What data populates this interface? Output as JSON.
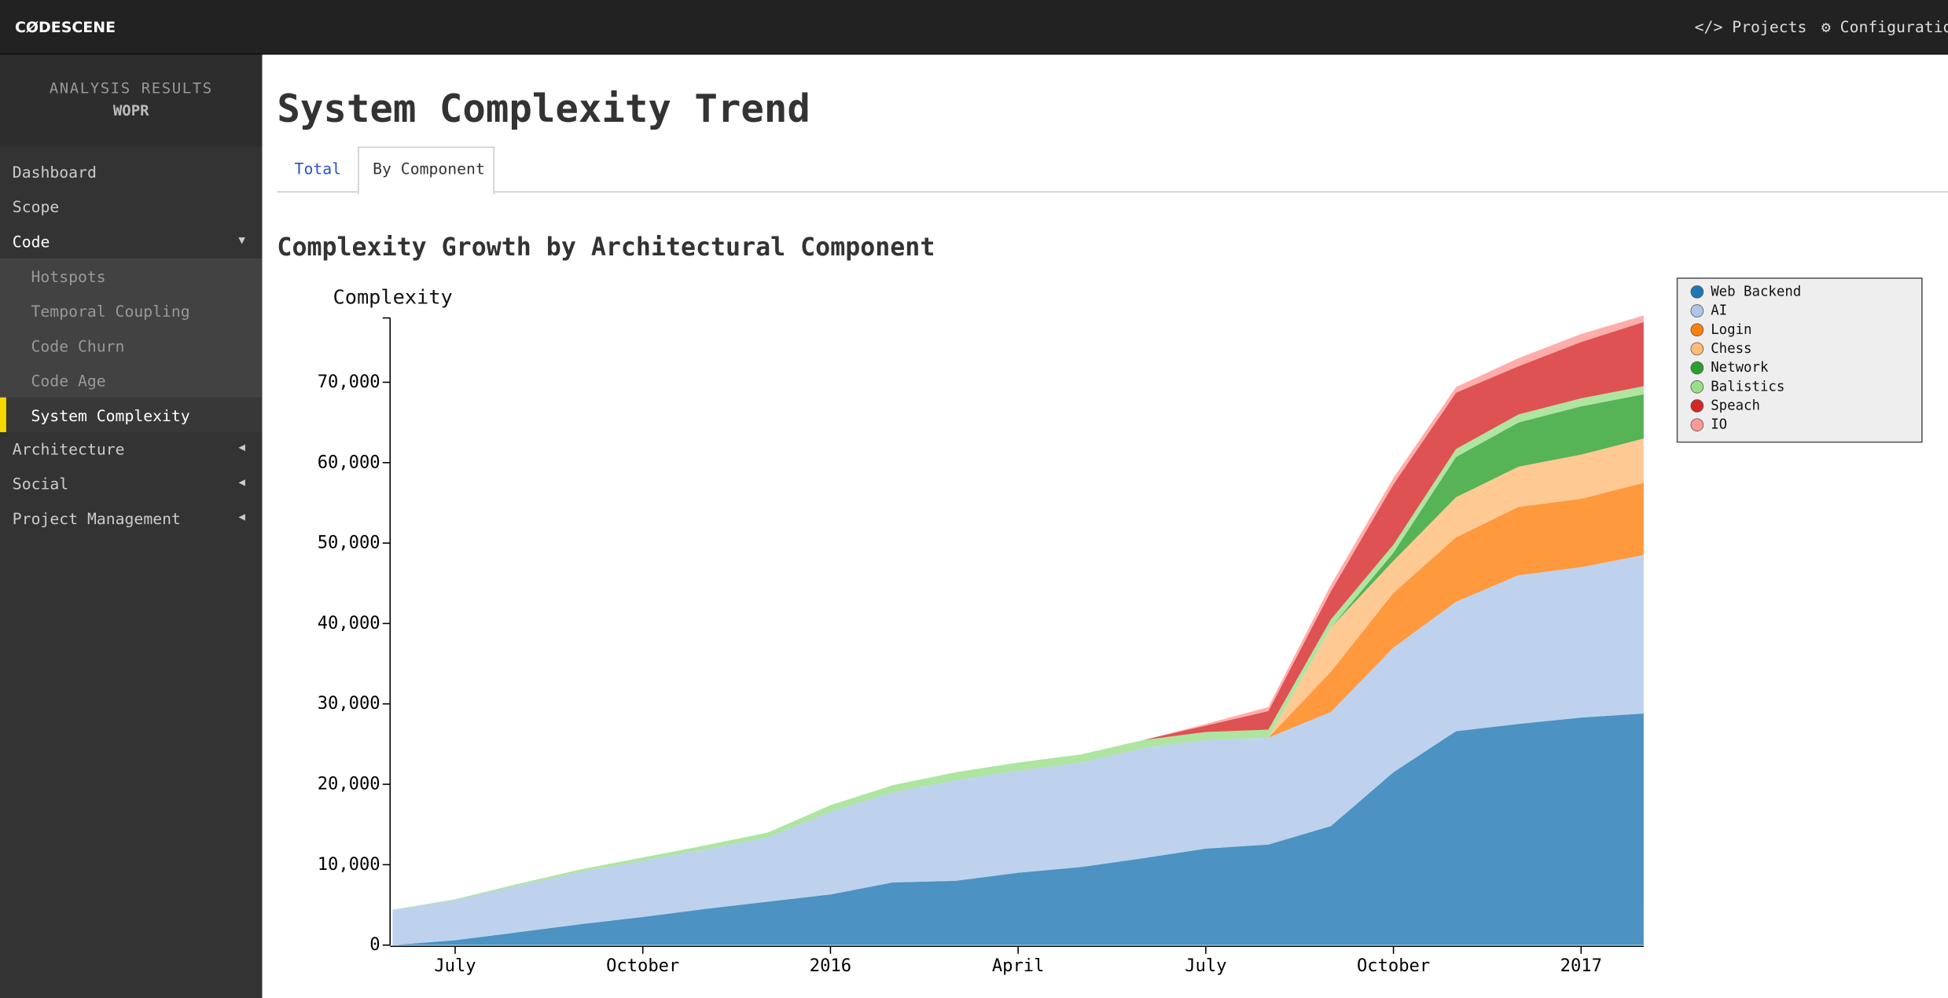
{
  "header": {
    "brand": "CØDESCENE",
    "nav": [
      "Projects",
      "Configuration"
    ]
  },
  "sidebar": {
    "heading": "ANALYSIS RESULTS",
    "project": "WOPR",
    "menu": [
      "Dashboard",
      "Scope",
      "Code",
      "Architecture",
      "Social",
      "Project Management"
    ],
    "submenu": [
      "Hotspots",
      "Temporal Coupling",
      "Code Churn",
      "Code Age",
      "System Complexity"
    ]
  },
  "page": {
    "title": "System Complexity Trend",
    "tabs": [
      "Total",
      "By Component"
    ]
  },
  "chart_data": {
    "type": "stacked-area",
    "title": "Complexity Growth by Architectural Component",
    "y_label": "Complexity",
    "x": [
      "2015-06",
      "2015-07",
      "2015-08",
      "2015-09",
      "2015-10",
      "2015-11",
      "2015-12",
      "2016-01",
      "2016-02",
      "2016-03",
      "2016-04",
      "2016-05",
      "2016-06",
      "2016-07",
      "2016-08",
      "2016-09",
      "2016-10",
      "2016-11",
      "2016-12",
      "2017-01",
      "2017-02"
    ],
    "xlim": [
      "2015-06",
      "2017-02"
    ],
    "xticks": [
      {
        "value": "2015-07",
        "label": "July"
      },
      {
        "value": "2015-10",
        "label": "October"
      },
      {
        "value": "2016-01",
        "label": "2016"
      },
      {
        "value": "2016-04",
        "label": "April"
      },
      {
        "value": "2016-07",
        "label": "July"
      },
      {
        "value": "2016-10",
        "label": "October"
      },
      {
        "value": "2017-01",
        "label": "2017"
      }
    ],
    "ylim": [
      0,
      78000
    ],
    "yticks": [
      0,
      {
        "value": 10000,
        "label": "10,000"
      },
      {
        "value": 20000,
        "label": "20,000"
      },
      {
        "value": 30000,
        "label": "30,000"
      },
      {
        "value": 40000,
        "label": "40,000"
      },
      {
        "value": 50000,
        "label": "50,000"
      },
      {
        "value": 60000,
        "label": "60,000"
      },
      {
        "value": 70000,
        "label": "70,000"
      }
    ],
    "legend": "top-right",
    "series": [
      {
        "name": "Web Backend",
        "color": "#1f77b4",
        "values": [
          0,
          600,
          1600,
          2600,
          3500,
          4500,
          5400,
          6300,
          7800,
          8000,
          9000,
          9700,
          10800,
          12000,
          12500,
          14800,
          21500,
          26600,
          27500,
          28300,
          28800
        ]
      },
      {
        "name": "AI",
        "color": "#aec7e8",
        "values": [
          4400,
          5000,
          5800,
          6500,
          7000,
          7400,
          8000,
          10300,
          11200,
          12500,
          12700,
          13000,
          13700,
          13500,
          13300,
          14200,
          15500,
          16100,
          18500,
          18700,
          19700
        ]
      },
      {
        "name": "Login",
        "color": "#ff7f0e",
        "values": [
          0,
          0,
          0,
          0,
          0,
          0,
          0,
          0,
          0,
          0,
          0,
          0,
          0,
          0,
          0,
          5000,
          6800,
          8000,
          8500,
          8500,
          9000
        ]
      },
      {
        "name": "Chess",
        "color": "#ffbb78",
        "values": [
          0,
          0,
          0,
          0,
          0,
          0,
          0,
          0,
          0,
          0,
          0,
          0,
          0,
          0,
          0,
          5500,
          4000,
          5000,
          5000,
          5500,
          5500
        ]
      },
      {
        "name": "Network",
        "color": "#2ca02c",
        "values": [
          0,
          0,
          0,
          0,
          0,
          0,
          0,
          0,
          0,
          0,
          0,
          0,
          0,
          0,
          0,
          0,
          1000,
          5000,
          5500,
          6000,
          5500
        ]
      },
      {
        "name": "Balistics",
        "color": "#98df8a",
        "values": [
          0,
          100,
          200,
          300,
          400,
          500,
          600,
          800,
          900,
          1000,
          1000,
          1000,
          1000,
          1000,
          1000,
          1000,
          1000,
          1000,
          1000,
          1000,
          1000
        ]
      },
      {
        "name": "Speach",
        "color": "#d62728",
        "values": [
          0,
          0,
          0,
          0,
          0,
          0,
          0,
          0,
          0,
          0,
          0,
          0,
          0,
          800,
          2300,
          3500,
          7500,
          7000,
          6000,
          7000,
          8000
        ]
      },
      {
        "name": "IO",
        "color": "#ff9896",
        "values": [
          0,
          0,
          0,
          0,
          0,
          0,
          0,
          0,
          0,
          0,
          0,
          0,
          0,
          200,
          500,
          800,
          800,
          700,
          1000,
          1000,
          800
        ]
      }
    ]
  }
}
